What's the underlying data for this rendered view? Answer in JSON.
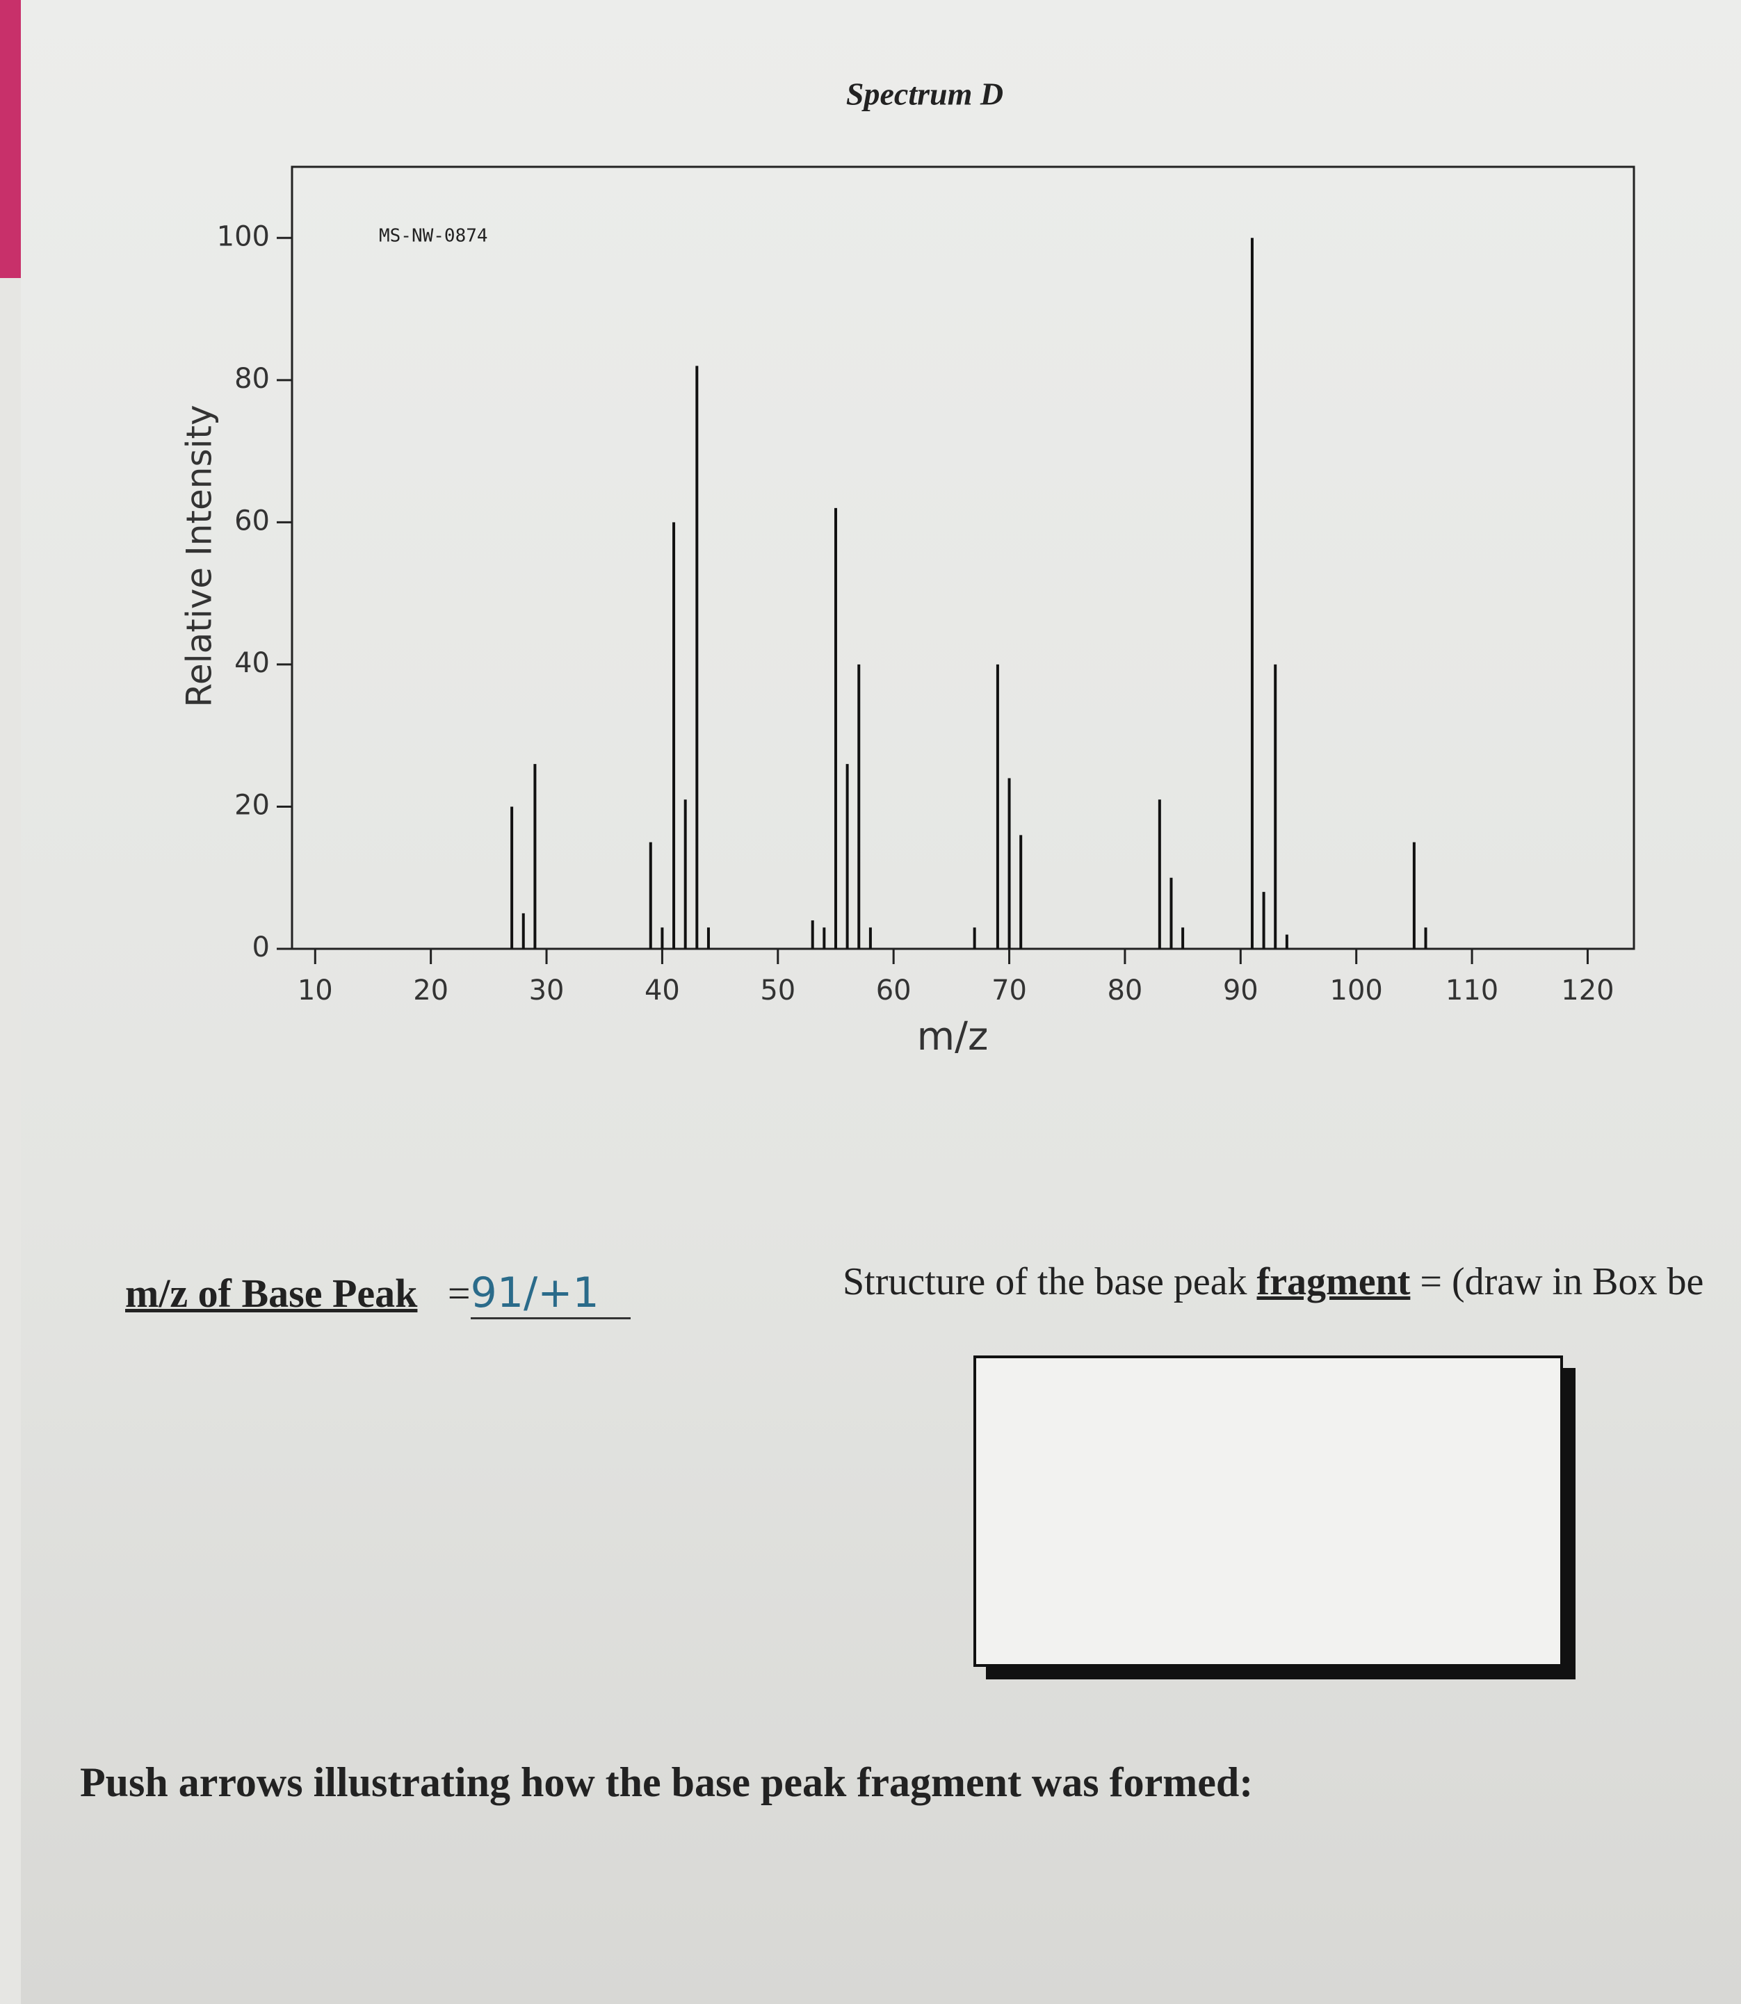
{
  "chart_data": {
    "type": "stem",
    "title": "Spectrum D",
    "annotation": "MS-NW-0874",
    "x_label": "m/z",
    "y_label": "Relative Intensity",
    "x": [
      27,
      28,
      29,
      39,
      40,
      41,
      42,
      43,
      44,
      53,
      54,
      55,
      56,
      57,
      58,
      67,
      69,
      70,
      71,
      83,
      84,
      85,
      91,
      92,
      93,
      94,
      105,
      106
    ],
    "values": [
      20,
      5,
      26,
      15,
      3,
      60,
      21,
      82,
      3,
      4,
      3,
      62,
      26,
      40,
      3,
      3,
      40,
      24,
      16,
      21,
      10,
      3,
      100,
      8,
      40,
      2,
      15,
      3
    ],
    "color": "#111111",
    "xlim": [
      8,
      124
    ],
    "xticks": [
      10,
      20,
      30,
      40,
      50,
      60,
      70,
      80,
      90,
      100,
      110,
      120
    ],
    "ylim": [
      0,
      110
    ],
    "yticks": [
      0,
      20,
      40,
      60,
      80,
      100
    ]
  },
  "worksheet": {
    "base_peak_label": "m/z of Base Peak",
    "equals": "=",
    "handwritten_answer": "91/+1",
    "structure_prompt": "Structure of the base peak",
    "structure_keyword": "fragment",
    "structure_suffix": "= (draw in Box be",
    "arrows_prompt": "Push arrows illustrating how the base peak fragment was formed:"
  }
}
